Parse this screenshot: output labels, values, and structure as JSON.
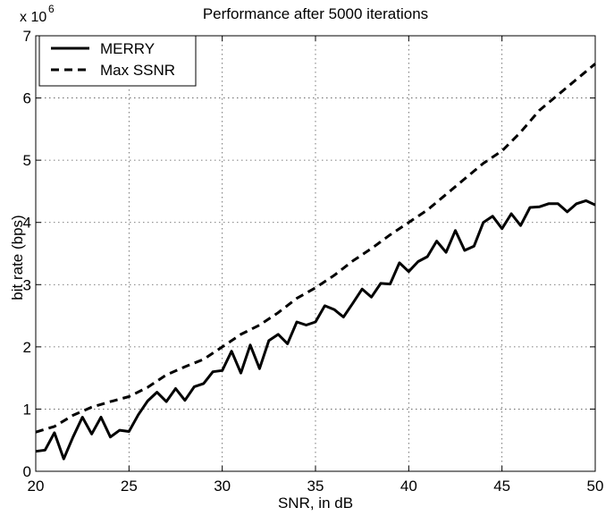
{
  "chart_data": {
    "type": "line",
    "title": "Performance after 5000 iterations",
    "xlabel": "SNR, in dB",
    "ylabel": "bit rate (bps)",
    "y_multiplier_label": "x 10",
    "y_multiplier_exponent": "6",
    "xlim": [
      20,
      50
    ],
    "ylim": [
      0,
      7
    ],
    "xticks": [
      20,
      25,
      30,
      35,
      40,
      45,
      50
    ],
    "yticks": [
      0,
      1,
      2,
      3,
      4,
      5,
      6,
      7
    ],
    "grid": true,
    "legend_position": "top-left",
    "series": [
      {
        "name": "MERRY",
        "style": "solid",
        "x": [
          20,
          20.5,
          21,
          21.5,
          22,
          22.5,
          23,
          23.5,
          24,
          24.5,
          25,
          25.5,
          26,
          26.5,
          27,
          27.5,
          28,
          28.5,
          29,
          29.5,
          30,
          30.5,
          31,
          31.5,
          32,
          32.5,
          33,
          33.5,
          34,
          34.5,
          35,
          35.5,
          36,
          36.5,
          37,
          37.5,
          38,
          38.5,
          39,
          39.5,
          40,
          40.5,
          41,
          41.5,
          42,
          42.5,
          43,
          43.5,
          44,
          44.5,
          45,
          45.5,
          46,
          46.5,
          47,
          47.5,
          48,
          48.5,
          49,
          49.5,
          50
        ],
        "values": [
          0.32,
          0.34,
          0.62,
          0.2,
          0.55,
          0.87,
          0.6,
          0.87,
          0.55,
          0.66,
          0.64,
          0.91,
          1.13,
          1.27,
          1.12,
          1.33,
          1.14,
          1.36,
          1.41,
          1.6,
          1.62,
          1.93,
          1.58,
          2.03,
          1.65,
          2.1,
          2.2,
          2.05,
          2.4,
          2.35,
          2.4,
          2.66,
          2.6,
          2.48,
          2.7,
          2.93,
          2.8,
          3.02,
          3.01,
          3.35,
          3.21,
          3.37,
          3.45,
          3.7,
          3.52,
          3.87,
          3.55,
          3.62,
          4.0,
          4.1,
          3.9,
          4.14,
          3.95,
          4.24,
          4.25,
          4.3,
          4.3,
          4.17,
          4.3,
          4.35,
          4.28
        ]
      },
      {
        "name": "Max SSNR",
        "style": "dashed",
        "x": [
          20,
          21,
          22,
          23,
          24,
          25,
          26,
          27,
          28,
          29,
          30,
          31,
          32,
          33,
          34,
          35,
          36,
          37,
          38,
          39,
          40,
          41,
          42,
          43,
          44,
          45,
          46,
          47,
          48,
          49,
          50
        ],
        "values": [
          0.63,
          0.72,
          0.9,
          1.03,
          1.12,
          1.2,
          1.35,
          1.55,
          1.68,
          1.8,
          2.0,
          2.2,
          2.35,
          2.55,
          2.78,
          2.95,
          3.15,
          3.38,
          3.58,
          3.8,
          4.0,
          4.2,
          4.45,
          4.7,
          4.95,
          5.15,
          5.45,
          5.8,
          6.05,
          6.3,
          6.55
        ]
      }
    ]
  }
}
